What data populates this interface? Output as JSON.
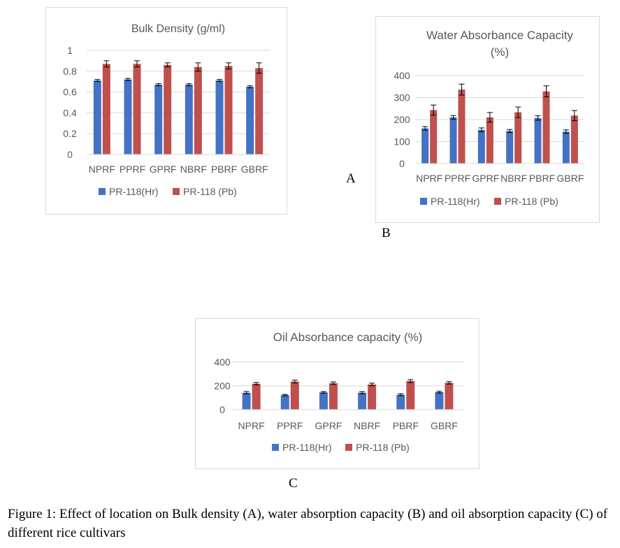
{
  "figure": {
    "caption": "Figure 1: Effect of location on Bulk density (A), water absorption capacity (B) and oil absorption capacity (C) of different rice cultivars",
    "panel_labels": [
      "A",
      "B",
      "C"
    ]
  },
  "colors": {
    "hr": "#4472C4",
    "pb": "#C0504D",
    "grid": "#d9d9d9",
    "text": "#595959"
  },
  "chart_data": [
    {
      "id": "A",
      "type": "bar",
      "title": "Bulk Density (g/ml)",
      "title_lines": [
        "Bulk Density (g/ml)"
      ],
      "xlabel": "",
      "ylabel": "",
      "categories": [
        "NPRF",
        "PPRF",
        "GPRF",
        "NBRF",
        "PBRF",
        "GBRF"
      ],
      "ylim": [
        0,
        1
      ],
      "yticks": [
        0,
        0.2,
        0.4,
        0.6,
        0.8,
        1
      ],
      "ytick_labels": [
        "0",
        "0.2",
        "0.4",
        "0.6",
        "0.8",
        "1"
      ],
      "grid": true,
      "legend": "bottom",
      "series": [
        {
          "name": "PR-118(Hr)",
          "values": [
            0.71,
            0.72,
            0.67,
            0.67,
            0.71,
            0.65
          ],
          "errors": [
            0.01,
            0.01,
            0.01,
            0.01,
            0.01,
            0.01
          ]
        },
        {
          "name": "PR-118 (Pb)",
          "values": [
            0.87,
            0.87,
            0.86,
            0.84,
            0.85,
            0.83
          ],
          "errors": [
            0.03,
            0.03,
            0.02,
            0.04,
            0.03,
            0.05
          ]
        }
      ]
    },
    {
      "id": "B",
      "type": "bar",
      "title": "Water Absorbance Capacity (%)",
      "title_lines": [
        "Water Absorbance Capacity",
        "(%)"
      ],
      "xlabel": "",
      "ylabel": "",
      "categories": [
        "NPRF",
        "PPRF",
        "GPRF",
        "NBRF",
        "PBRF",
        "GBRF"
      ],
      "ylim": [
        0,
        400
      ],
      "yticks": [
        0,
        100,
        200,
        300,
        400
      ],
      "ytick_labels": [
        "0",
        "100",
        "200",
        "300",
        "400"
      ],
      "grid": true,
      "legend": "bottom",
      "series": [
        {
          "name": "PR-118(Hr)",
          "values": [
            160,
            210,
            153,
            148,
            207,
            145
          ],
          "errors": [
            8,
            8,
            9,
            7,
            10,
            8
          ]
        },
        {
          "name": "PR-118 (Pb)",
          "values": [
            243,
            336,
            210,
            233,
            328,
            218
          ],
          "errors": [
            23,
            25,
            22,
            24,
            25,
            23
          ]
        }
      ]
    },
    {
      "id": "C",
      "type": "bar",
      "title": "Oil Absorbance capacity (%)",
      "title_lines": [
        "Oil Absorbance capacity (%)"
      ],
      "xlabel": "",
      "ylabel": "",
      "categories": [
        "NPRF",
        "PPRF",
        "GPRF",
        "NBRF",
        "PBRF",
        "GBRF"
      ],
      "ylim": [
        0,
        400
      ],
      "yticks": [
        0,
        200,
        400
      ],
      "ytick_labels": [
        "0",
        "200",
        "400"
      ],
      "grid": true,
      "legend": "bottom",
      "series": [
        {
          "name": "PR-118(Hr)",
          "values": [
            142,
            122,
            145,
            142,
            125,
            147
          ],
          "errors": [
            10,
            6,
            7,
            9,
            8,
            7
          ]
        },
        {
          "name": "PR-118 (Pb)",
          "values": [
            218,
            236,
            222,
            212,
            240,
            225
          ],
          "errors": [
            10,
            12,
            10,
            11,
            12,
            10
          ]
        }
      ]
    }
  ]
}
